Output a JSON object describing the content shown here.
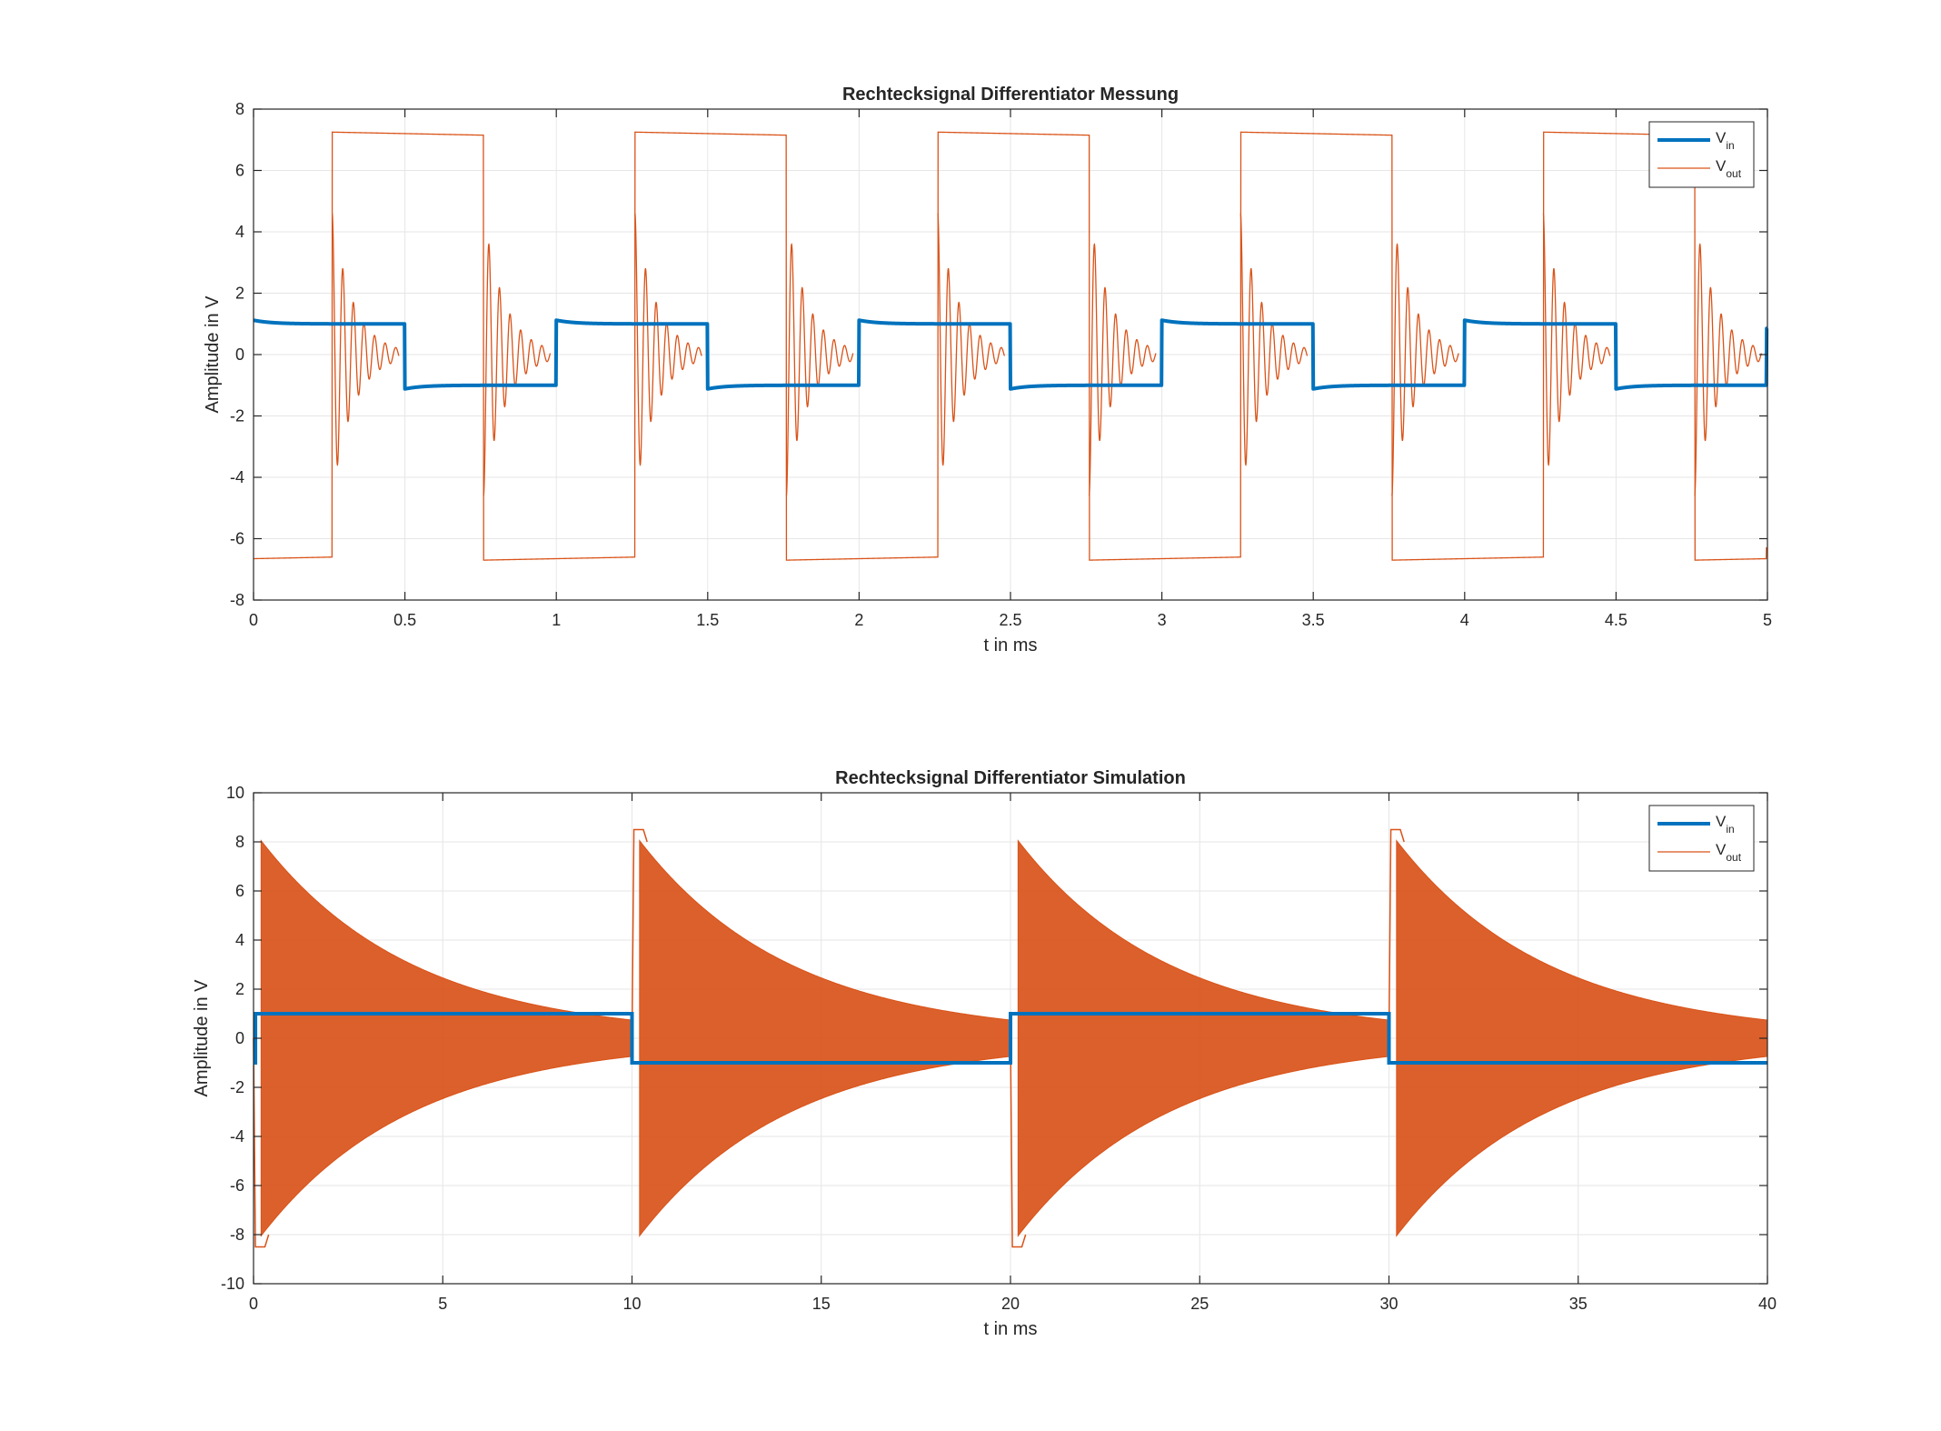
{
  "colors": {
    "vin": "#0072BD",
    "vout": "#D95319",
    "grid": "#e6e6e6",
    "axis": "#262626",
    "background": "#ffffff"
  },
  "chart_data": [
    {
      "type": "line",
      "title": "Rechtecksignal Differentiator Messung",
      "xlabel": "t in ms",
      "ylabel": "Amplitude in V",
      "xlim": [
        0,
        5
      ],
      "ylim": [
        -8,
        8
      ],
      "xticks": [
        "0",
        "0.5",
        "1",
        "1.5",
        "2",
        "2.5",
        "3",
        "3.5",
        "4",
        "4.5",
        "5"
      ],
      "yticks": [
        "-8",
        "-6",
        "-4",
        "-2",
        "0",
        "2",
        "4",
        "6",
        "8"
      ],
      "grid": true,
      "legend_position": "top-right",
      "legend": [
        {
          "base": "V",
          "sub": "in"
        },
        {
          "base": "V",
          "sub": "out"
        }
      ],
      "series": [
        {
          "name": "Vin",
          "kind": "square",
          "period": 1.0,
          "high": 1.0,
          "low": -1.0,
          "first_fall": 0.5,
          "overshoot": 0.12,
          "end_value": 0.85
        },
        {
          "name": "Vout",
          "kind": "differentiator",
          "period": 1.0,
          "high": 7.25,
          "low": -6.7,
          "rise_time": 0.26,
          "fall_time": 0.76,
          "ring_amplitude": 4.6,
          "ring_period": 0.035,
          "ring_decay": 0.07,
          "end_value": -6.3
        }
      ]
    },
    {
      "type": "line",
      "title": "Rechtecksignal Differentiator Simulation",
      "xlabel": "t in ms",
      "ylabel": "Amplitude in V",
      "xlim": [
        0,
        40
      ],
      "ylim": [
        -10,
        10
      ],
      "xticks": [
        "0",
        "5",
        "10",
        "15",
        "20",
        "25",
        "30",
        "35",
        "40"
      ],
      "yticks": [
        "-10",
        "-8",
        "-6",
        "-4",
        "-2",
        "0",
        "2",
        "4",
        "6",
        "8",
        "10"
      ],
      "grid": true,
      "legend_position": "top-right",
      "legend": [
        {
          "base": "V",
          "sub": "in"
        },
        {
          "base": "V",
          "sub": "out"
        }
      ],
      "series": [
        {
          "name": "Vin",
          "kind": "square",
          "period": 20,
          "high": 1.0,
          "low": -1.0,
          "first_rise": 0.05,
          "first_fall": 10
        },
        {
          "name": "Vout",
          "kind": "decaying_oscillation",
          "start_times": [
            0.2,
            10.2,
            20.2,
            30.2
          ],
          "peak_amplitude": 8.0,
          "plateau_level": 8.5,
          "decay_time_constant": 4.0,
          "envelope_end": 0.6
        }
      ]
    }
  ]
}
